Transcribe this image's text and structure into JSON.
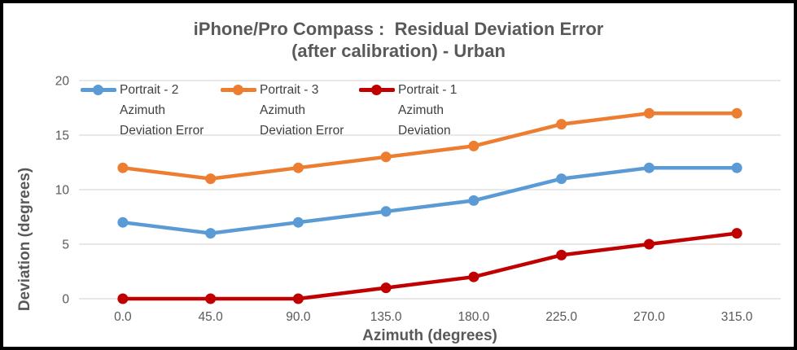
{
  "title": {
    "line1": "iPhone/Pro Compass :  Residual Deviation Error",
    "line2": "(after calibration) - Urban"
  },
  "axes": {
    "x_title": "Azimuth (degrees)",
    "y_title": "Deviation (degrees)",
    "x_ticks": [
      "0.0",
      "45.0",
      "90.0",
      "135.0",
      "180.0",
      "225.0",
      "270.0",
      "315.0"
    ],
    "y_ticks": [
      "0",
      "5",
      "10",
      "15",
      "20"
    ]
  },
  "legend": {
    "entries": [
      {
        "lines": [
          "Portrait - 2",
          "Azimuth",
          "Deviation Error"
        ],
        "color": "#5B9BD5"
      },
      {
        "lines": [
          "Portrait - 3",
          "Azimuth",
          "Deviation Error"
        ],
        "color": "#ED7D31"
      },
      {
        "lines": [
          "Portrait - 1",
          "Azimuth",
          "Deviation"
        ],
        "color": "#C00000"
      }
    ]
  },
  "chart_data": {
    "type": "line",
    "title": "iPhone/Pro Compass :  Residual Deviation Error (after calibration) - Urban",
    "xlabel": "Azimuth (degrees)",
    "ylabel": "Deviation (degrees)",
    "x": [
      0,
      45,
      90,
      135,
      180,
      225,
      270,
      315
    ],
    "x_tick_labels": [
      "0.0",
      "45.0",
      "90.0",
      "135.0",
      "180.0",
      "225.0",
      "270.0",
      "315.0"
    ],
    "ylim": [
      0,
      20
    ],
    "y_tick_step": 5,
    "grid": "horizontal",
    "legend_position": "inside-top-left",
    "series": [
      {
        "name": "Portrait - 2 Azimuth Deviation Error",
        "color": "#5B9BD5",
        "values": [
          7,
          6,
          7,
          8,
          9,
          11,
          12,
          12
        ]
      },
      {
        "name": "Portrait - 3 Azimuth Deviation Error",
        "color": "#ED7D31",
        "values": [
          12,
          11,
          12,
          13,
          14,
          16,
          17,
          17
        ]
      },
      {
        "name": "Portrait - 1 Azimuth Deviation",
        "color": "#C00000",
        "values": [
          0,
          0,
          0,
          1,
          2,
          4,
          5,
          6
        ]
      }
    ]
  },
  "colors": {
    "grid": "#D9D9D9",
    "tick_label": "#595959",
    "axis_title": "#595959",
    "chart_title": "#595959",
    "legend_text": "#404040",
    "frame": "#000000",
    "background": "#FFFFFF"
  }
}
